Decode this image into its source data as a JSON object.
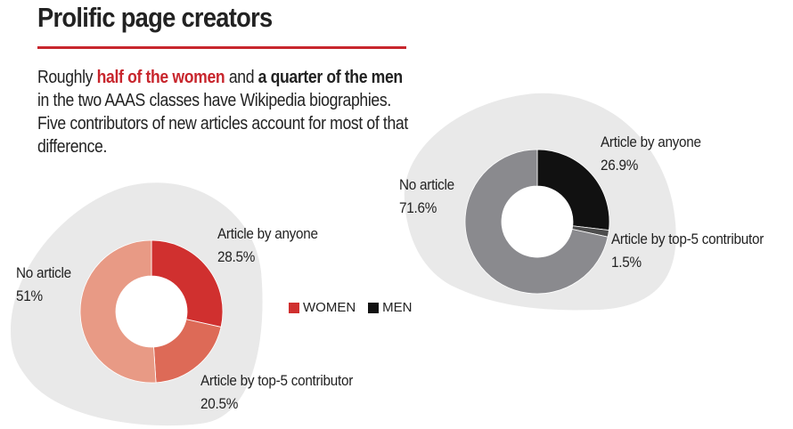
{
  "page": {
    "title": "Prolific page creators",
    "intro": {
      "p1": "Roughly ",
      "h1": "half of the women",
      "p2": " and ",
      "h2": "a quarter of the men",
      "p3": " in the two AAAS classes have Wikipedia biographies. Five contributors of new articles account for most of that difference."
    }
  },
  "colors": {
    "accent": "#c8262d",
    "blob": "#e9e9e9",
    "women_anyone": "#d0302f",
    "women_top5": "#dd6a57",
    "women_none": "#e89a85",
    "men_anyone": "#111111",
    "men_top5": "#4d4d4d",
    "men_none": "#8a8a8e"
  },
  "legend": {
    "women": "WOMEN",
    "men": "MEN"
  },
  "chart_data": [
    {
      "type": "pie",
      "group": "WOMEN",
      "slices": [
        {
          "label": "Article by anyone",
          "value": 28.5,
          "value_label": "28.5%"
        },
        {
          "label": "Article by top-5 contributor",
          "value": 20.5,
          "value_label": "20.5%"
        },
        {
          "label": "No article",
          "value": 51,
          "value_label": "51%"
        }
      ]
    },
    {
      "type": "pie",
      "group": "MEN",
      "slices": [
        {
          "label": "Article by anyone",
          "value": 26.9,
          "value_label": "26.9%"
        },
        {
          "label": "Article by top-5 contributor",
          "value": 1.5,
          "value_label": "1.5%"
        },
        {
          "label": "No article",
          "value": 71.6,
          "value_label": "71.6%"
        }
      ]
    }
  ]
}
